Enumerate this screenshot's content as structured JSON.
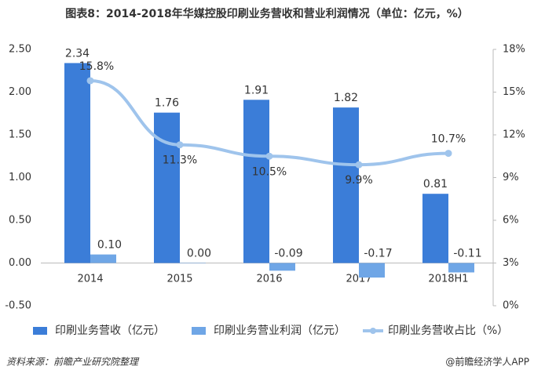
{
  "chart_data": {
    "type": "bar-line",
    "title": "图表8：2014-2018年华媒控股印刷业务营收和营业利润情况（单位：亿元，%）",
    "categories": [
      "2014",
      "2015",
      "2016",
      "2017",
      "2018H1"
    ],
    "series": [
      {
        "name": "印刷业务营收（亿元）",
        "type": "bar",
        "color": "#3b7dd8",
        "values": [
          2.34,
          1.76,
          1.91,
          1.82,
          0.81
        ]
      },
      {
        "name": "印刷业务营业利润（亿元）",
        "type": "bar",
        "color": "#6fa6e6",
        "values": [
          0.1,
          0.0,
          -0.09,
          -0.17,
          -0.11
        ],
        "value_labels": [
          "0.10",
          "0.00",
          "-0.09",
          "-0.17",
          "-0.11"
        ]
      },
      {
        "name": "印刷业务营收占比（%）",
        "type": "line",
        "axis": "y2",
        "color": "#9fc4ec",
        "values": [
          15.8,
          11.3,
          10.5,
          9.9,
          10.7
        ],
        "value_labels": [
          "15.8%",
          "11.3%",
          "10.5%",
          "9.9%",
          "10.7%"
        ]
      }
    ],
    "ylim": [
      -0.5,
      2.5
    ],
    "yticks": [
      {
        "value": -0.5,
        "label": "-0.50"
      },
      {
        "value": 0,
        "label": "0.00"
      },
      {
        "value": 0.5,
        "label": "0.50"
      },
      {
        "value": 1,
        "label": "1.00"
      },
      {
        "value": 1.5,
        "label": "1.50"
      },
      {
        "value": 2,
        "label": "2.00"
      },
      {
        "value": 2.5,
        "label": "2.50"
      }
    ],
    "y2lim": [
      0,
      18
    ],
    "y2ticks": [
      {
        "value": 0,
        "label": "0%"
      },
      {
        "value": 3,
        "label": "3%"
      },
      {
        "value": 6,
        "label": "6%"
      },
      {
        "value": 9,
        "label": "9%"
      },
      {
        "value": 12,
        "label": "12%"
      },
      {
        "value": 15,
        "label": "15%"
      },
      {
        "value": 18,
        "label": "18%"
      }
    ],
    "source": "资料来源：前瞻产业研究院整理",
    "footer": "@前瞻经济学人APP"
  }
}
